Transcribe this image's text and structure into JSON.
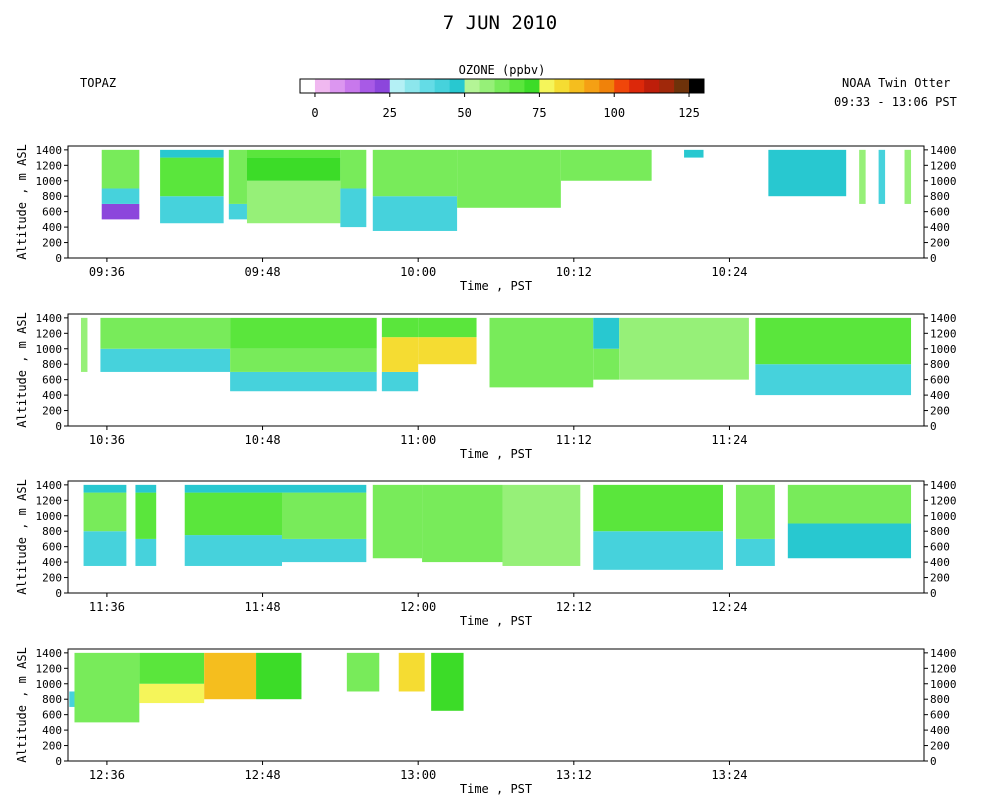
{
  "header": {
    "title": "7 JUN 2010",
    "site": "TOPAZ",
    "platform": "NOAA Twin Otter",
    "time_range": "09:33 - 13:06 PST"
  },
  "colorbar": {
    "title": "OZONE (ppbv)",
    "tick_labels": [
      "0",
      "25",
      "50",
      "75",
      "100",
      "125"
    ],
    "tick_values": [
      0,
      25,
      50,
      75,
      100,
      125
    ],
    "range": [
      -5,
      130
    ],
    "bins": [
      {
        "lo": -5,
        "hi": 0,
        "color": "#ffffff"
      },
      {
        "lo": 0,
        "hi": 5,
        "color": "#f0b8f0"
      },
      {
        "lo": 5,
        "hi": 10,
        "color": "#dc96f0"
      },
      {
        "lo": 10,
        "hi": 15,
        "color": "#c878ec"
      },
      {
        "lo": 15,
        "hi": 20,
        "color": "#a85ae6"
      },
      {
        "lo": 20,
        "hi": 25,
        "color": "#8c46dc"
      },
      {
        "lo": 25,
        "hi": 30,
        "color": "#b4f0f5"
      },
      {
        "lo": 30,
        "hi": 35,
        "color": "#8ce6ec"
      },
      {
        "lo": 35,
        "hi": 40,
        "color": "#64dce6"
      },
      {
        "lo": 40,
        "hi": 45,
        "color": "#46d2dc"
      },
      {
        "lo": 45,
        "hi": 50,
        "color": "#28c8d0"
      },
      {
        "lo": 50,
        "hi": 55,
        "color": "#b4f596"
      },
      {
        "lo": 55,
        "hi": 60,
        "color": "#96f078"
      },
      {
        "lo": 60,
        "hi": 65,
        "color": "#78eb5a"
      },
      {
        "lo": 65,
        "hi": 70,
        "color": "#5ae63c"
      },
      {
        "lo": 70,
        "hi": 75,
        "color": "#3cdc28"
      },
      {
        "lo": 75,
        "hi": 80,
        "color": "#f5f55a"
      },
      {
        "lo": 80,
        "hi": 85,
        "color": "#f5dc32"
      },
      {
        "lo": 85,
        "hi": 90,
        "color": "#f5be1e"
      },
      {
        "lo": 90,
        "hi": 95,
        "color": "#f5a014"
      },
      {
        "lo": 95,
        "hi": 100,
        "color": "#f0820a"
      },
      {
        "lo": 100,
        "hi": 105,
        "color": "#f0460a"
      },
      {
        "lo": 105,
        "hi": 110,
        "color": "#dc280a"
      },
      {
        "lo": 110,
        "hi": 115,
        "color": "#be1e0a"
      },
      {
        "lo": 115,
        "hi": 120,
        "color": "#a0280a"
      },
      {
        "lo": 120,
        "hi": 125,
        "color": "#6e320a"
      },
      {
        "lo": 125,
        "hi": 130,
        "color": "#000000"
      }
    ]
  },
  "chart_data": [
    {
      "type": "heatmap",
      "xlabel": "Time , PST",
      "ylabel": "Altitude , m ASL",
      "xlim": [
        573,
        639
      ],
      "ylim": [
        0,
        1450
      ],
      "x_ticks": [
        576,
        588,
        600,
        612,
        624
      ],
      "x_tick_labels": [
        "09:36",
        "09:48",
        "10:00",
        "10:12",
        "10:24"
      ],
      "y_ticks": [
        0,
        200,
        400,
        600,
        800,
        1000,
        1200,
        1400
      ],
      "y_tick_labels": [
        "0",
        "200",
        "400",
        "600",
        "800",
        "1000",
        "1200",
        "1400"
      ],
      "columns": [
        {
          "start": 575.6,
          "end": 578.5,
          "bottom": 500,
          "top": 1400,
          "layers": [
            {
              "top": 700,
              "value": 20
            },
            {
              "top": 900,
              "value": 40
            },
            {
              "top": 1400,
              "value": 62
            }
          ]
        },
        {
          "start": 580.1,
          "end": 585.0,
          "bottom": 450,
          "top": 1400,
          "layers": [
            {
              "top": 800,
              "value": 42
            },
            {
              "top": 1300,
              "value": 65
            },
            {
              "top": 1400,
              "value": 45
            }
          ]
        },
        {
          "start": 585.4,
          "end": 586.8,
          "bottom": 500,
          "top": 1400,
          "layers": [
            {
              "top": 700,
              "value": 40
            },
            {
              "top": 1400,
              "value": 62
            }
          ]
        },
        {
          "start": 586.8,
          "end": 594.0,
          "bottom": 450,
          "top": 1400,
          "layers": [
            {
              "top": 1000,
              "value": 58
            },
            {
              "top": 1300,
              "value": 72
            },
            {
              "top": 1400,
              "value": 66
            }
          ]
        },
        {
          "start": 594.0,
          "end": 596.0,
          "bottom": 400,
          "top": 1400,
          "layers": [
            {
              "top": 900,
              "value": 40
            },
            {
              "top": 1400,
              "value": 62
            }
          ]
        },
        {
          "start": 596.5,
          "end": 603.0,
          "bottom": 350,
          "top": 1400,
          "layers": [
            {
              "top": 800,
              "value": 40
            },
            {
              "top": 1400,
              "value": 64
            }
          ]
        },
        {
          "start": 603.0,
          "end": 611.0,
          "bottom": 650,
          "top": 1400,
          "layers": [
            {
              "top": 1400,
              "value": 64
            }
          ]
        },
        {
          "start": 611.0,
          "end": 618.0,
          "bottom": 1000,
          "top": 1400,
          "layers": [
            {
              "top": 1400,
              "value": 60
            }
          ]
        },
        {
          "start": 620.5,
          "end": 622.0,
          "bottom": 1300,
          "top": 1400,
          "layers": [
            {
              "top": 1400,
              "value": 45
            }
          ]
        },
        {
          "start": 627.0,
          "end": 633.0,
          "bottom": 800,
          "top": 1400,
          "layers": [
            {
              "top": 1400,
              "value": 45
            }
          ]
        },
        {
          "start": 634.0,
          "end": 634.5,
          "bottom": 700,
          "top": 1400,
          "layers": [
            {
              "top": 1400,
              "value": 55
            }
          ]
        },
        {
          "start": 635.5,
          "end": 636.0,
          "bottom": 700,
          "top": 1400,
          "layers": [
            {
              "top": 1400,
              "value": 42
            }
          ]
        },
        {
          "start": 637.5,
          "end": 638.0,
          "bottom": 700,
          "top": 1400,
          "layers": [
            {
              "top": 1400,
              "value": 58
            }
          ]
        }
      ]
    },
    {
      "type": "heatmap",
      "xlabel": "Time , PST",
      "ylabel": "Altitude , m ASL",
      "xlim": [
        633,
        699
      ],
      "ylim": [
        0,
        1450
      ],
      "x_ticks": [
        636,
        648,
        660,
        672,
        684
      ],
      "x_tick_labels": [
        "10:36",
        "10:48",
        "11:00",
        "11:12",
        "11:24"
      ],
      "y_ticks": [
        0,
        200,
        400,
        600,
        800,
        1000,
        1200,
        1400
      ],
      "y_tick_labels": [
        "0",
        "200",
        "400",
        "600",
        "800",
        "1000",
        "1200",
        "1400"
      ],
      "columns": [
        {
          "start": 634.0,
          "end": 634.5,
          "bottom": 700,
          "top": 1400,
          "layers": [
            {
              "top": 1400,
              "value": 58
            }
          ]
        },
        {
          "start": 635.5,
          "end": 645.5,
          "bottom": 700,
          "top": 1400,
          "layers": [
            {
              "top": 1000,
              "value": 42
            },
            {
              "top": 1400,
              "value": 62
            }
          ]
        },
        {
          "start": 645.5,
          "end": 656.8,
          "bottom": 450,
          "top": 1400,
          "layers": [
            {
              "top": 700,
              "value": 42
            },
            {
              "top": 1000,
              "value": 60
            },
            {
              "top": 1400,
              "value": 66
            }
          ]
        },
        {
          "start": 657.2,
          "end": 660.0,
          "bottom": 450,
          "top": 1400,
          "layers": [
            {
              "top": 700,
              "value": 40
            },
            {
              "top": 1150,
              "value": 80
            },
            {
              "top": 1400,
              "value": 66
            }
          ]
        },
        {
          "start": 660.0,
          "end": 664.5,
          "bottom": 800,
          "top": 1400,
          "layers": [
            {
              "top": 1150,
              "value": 82
            },
            {
              "top": 1400,
              "value": 68
            }
          ]
        },
        {
          "start": 665.5,
          "end": 673.5,
          "bottom": 500,
          "top": 1400,
          "layers": [
            {
              "top": 1400,
              "value": 64
            }
          ]
        },
        {
          "start": 673.5,
          "end": 675.5,
          "bottom": 600,
          "top": 1400,
          "layers": [
            {
              "top": 1000,
              "value": 60
            },
            {
              "top": 1400,
              "value": 45
            }
          ]
        },
        {
          "start": 675.5,
          "end": 685.5,
          "bottom": 600,
          "top": 1400,
          "layers": [
            {
              "top": 1400,
              "value": 58
            }
          ]
        },
        {
          "start": 686.0,
          "end": 698.0,
          "bottom": 400,
          "top": 1400,
          "layers": [
            {
              "top": 800,
              "value": 40
            },
            {
              "top": 1400,
              "value": 66
            }
          ]
        }
      ]
    },
    {
      "type": "heatmap",
      "xlabel": "Time , PST",
      "ylabel": "Altitude , m ASL",
      "xlim": [
        693,
        759
      ],
      "ylim": [
        0,
        1450
      ],
      "x_ticks": [
        696,
        708,
        720,
        732,
        744
      ],
      "x_tick_labels": [
        "11:36",
        "11:48",
        "12:00",
        "12:12",
        "12:24"
      ],
      "y_ticks": [
        0,
        200,
        400,
        600,
        800,
        1000,
        1200,
        1400
      ],
      "y_tick_labels": [
        "0",
        "200",
        "400",
        "600",
        "800",
        "1000",
        "1200",
        "1400"
      ],
      "columns": [
        {
          "start": 694.2,
          "end": 697.5,
          "bottom": 350,
          "top": 1400,
          "layers": [
            {
              "top": 800,
              "value": 42
            },
            {
              "top": 1300,
              "value": 62
            },
            {
              "top": 1400,
              "value": 45
            }
          ]
        },
        {
          "start": 698.2,
          "end": 699.8,
          "bottom": 350,
          "top": 1400,
          "layers": [
            {
              "top": 700,
              "value": 42
            },
            {
              "top": 1300,
              "value": 66
            },
            {
              "top": 1400,
              "value": 45
            }
          ]
        },
        {
          "start": 702.0,
          "end": 709.5,
          "bottom": 350,
          "top": 1400,
          "layers": [
            {
              "top": 750,
              "value": 40
            },
            {
              "top": 1300,
              "value": 66
            },
            {
              "top": 1400,
              "value": 45
            }
          ]
        },
        {
          "start": 709.5,
          "end": 716.0,
          "bottom": 400,
          "top": 1400,
          "layers": [
            {
              "top": 700,
              "value": 42
            },
            {
              "top": 1300,
              "value": 64
            },
            {
              "top": 1400,
              "value": 45
            }
          ]
        },
        {
          "start": 716.5,
          "end": 720.3,
          "bottom": 450,
          "top": 1400,
          "layers": [
            {
              "top": 1400,
              "value": 60
            }
          ]
        },
        {
          "start": 720.3,
          "end": 726.5,
          "bottom": 400,
          "top": 1400,
          "layers": [
            {
              "top": 1400,
              "value": 62
            }
          ]
        },
        {
          "start": 726.5,
          "end": 732.5,
          "bottom": 350,
          "top": 1400,
          "layers": [
            {
              "top": 1400,
              "value": 58
            }
          ]
        },
        {
          "start": 733.5,
          "end": 743.5,
          "bottom": 300,
          "top": 1400,
          "layers": [
            {
              "top": 800,
              "value": 40
            },
            {
              "top": 1400,
              "value": 66
            }
          ]
        },
        {
          "start": 744.5,
          "end": 747.5,
          "bottom": 350,
          "top": 1400,
          "layers": [
            {
              "top": 700,
              "value": 40
            },
            {
              "top": 1400,
              "value": 62
            }
          ]
        },
        {
          "start": 748.5,
          "end": 758.0,
          "bottom": 450,
          "top": 1400,
          "layers": [
            {
              "top": 900,
              "value": 45
            },
            {
              "top": 1400,
              "value": 62
            }
          ]
        }
      ]
    },
    {
      "type": "heatmap",
      "xlabel": "Time , PST",
      "ylabel": "Altitude , m ASL",
      "xlim": [
        753,
        819
      ],
      "ylim": [
        0,
        1450
      ],
      "x_ticks": [
        756,
        768,
        780,
        792,
        804
      ],
      "x_tick_labels": [
        "12:36",
        "12:48",
        "13:00",
        "13:12",
        "13:24"
      ],
      "y_ticks": [
        0,
        200,
        400,
        600,
        800,
        1000,
        1200,
        1400
      ],
      "y_tick_labels": [
        "0",
        "200",
        "400",
        "600",
        "800",
        "1000",
        "1200",
        "1400"
      ],
      "columns": [
        {
          "start": 753.1,
          "end": 753.7,
          "bottom": 700,
          "top": 900,
          "layers": [
            {
              "top": 900,
              "value": 40
            }
          ]
        },
        {
          "start": 753.5,
          "end": 758.5,
          "bottom": 500,
          "top": 1400,
          "layers": [
            {
              "top": 1400,
              "value": 62
            }
          ]
        },
        {
          "start": 758.5,
          "end": 763.5,
          "bottom": 750,
          "top": 1400,
          "layers": [
            {
              "top": 1000,
              "value": 76
            },
            {
              "top": 1400,
              "value": 66
            }
          ]
        },
        {
          "start": 763.5,
          "end": 767.5,
          "bottom": 800,
          "top": 1400,
          "layers": [
            {
              "top": 1400,
              "value": 88
            }
          ]
        },
        {
          "start": 767.5,
          "end": 771.0,
          "bottom": 800,
          "top": 1400,
          "layers": [
            {
              "top": 1400,
              "value": 72
            }
          ]
        },
        {
          "start": 774.5,
          "end": 777.0,
          "bottom": 900,
          "top": 1400,
          "layers": [
            {
              "top": 1400,
              "value": 64
            }
          ]
        },
        {
          "start": 778.5,
          "end": 780.5,
          "bottom": 900,
          "top": 1400,
          "layers": [
            {
              "top": 1400,
              "value": 82
            }
          ]
        },
        {
          "start": 781.0,
          "end": 783.5,
          "bottom": 650,
          "top": 1400,
          "layers": [
            {
              "top": 1400,
              "value": 70
            }
          ]
        }
      ]
    }
  ]
}
